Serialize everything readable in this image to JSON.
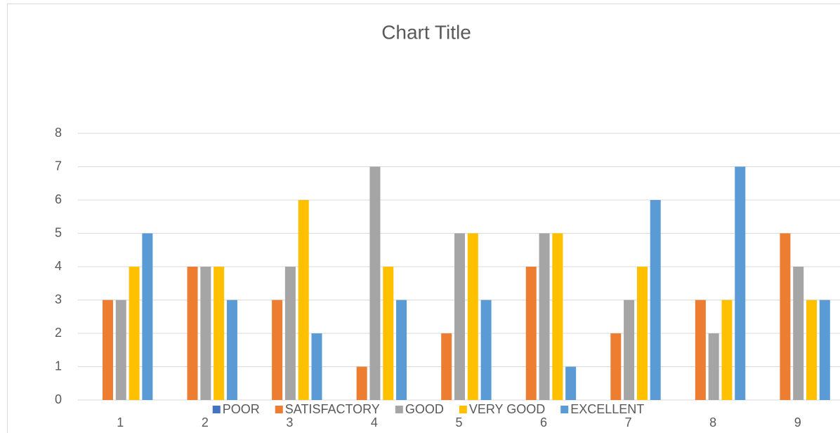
{
  "chart_data": {
    "type": "bar",
    "title": "Chart Title",
    "categories": [
      "1",
      "2",
      "3",
      "4",
      "5",
      "6",
      "7",
      "8",
      "9"
    ],
    "series": [
      {
        "name": "POOR",
        "color": "#4472c4",
        "values": [
          0,
          0,
          0,
          0,
          0,
          0,
          0,
          0,
          0
        ]
      },
      {
        "name": "SATISFACTORY",
        "color": "#ed7d31",
        "values": [
          3,
          4,
          3,
          1,
          2,
          4,
          2,
          3,
          5
        ]
      },
      {
        "name": "GOOD",
        "color": "#a5a5a5",
        "values": [
          3,
          4,
          4,
          7,
          5,
          5,
          3,
          2,
          4
        ]
      },
      {
        "name": "VERY GOOD",
        "color": "#ffc000",
        "values": [
          4,
          4,
          6,
          4,
          5,
          5,
          4,
          3,
          3
        ]
      },
      {
        "name": "EXCELLENT",
        "color": "#5b9bd5",
        "values": [
          5,
          3,
          2,
          3,
          3,
          1,
          6,
          7,
          3
        ]
      }
    ],
    "ylim": [
      0,
      8
    ],
    "yticks": [
      0,
      1,
      2,
      3,
      4,
      5,
      6,
      7,
      8
    ],
    "grid": true,
    "legend": "bottom"
  }
}
